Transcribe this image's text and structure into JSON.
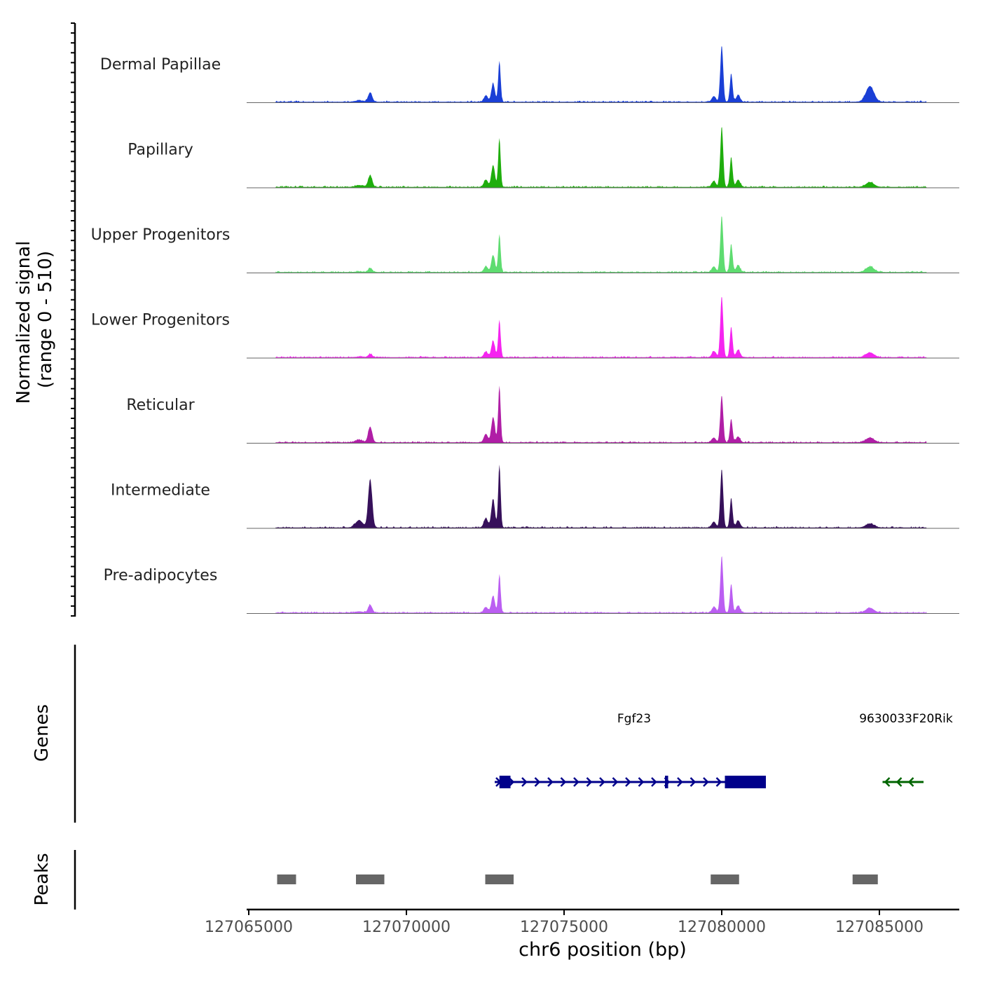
{
  "chart_data": {
    "type": "area",
    "title": "",
    "ylabel_line1": "Normalized signal",
    "ylabel_line2": "(range 0 - 510)",
    "y_range": [
      0,
      510
    ],
    "xlabel": "chr6 position (bp)",
    "xlim": [
      127064900,
      127087500
    ],
    "x_ticks": [
      127065000,
      127070000,
      127075000,
      127080000,
      127085000
    ],
    "x_tick_labels": [
      "127065000",
      "127070000",
      "127075000",
      "127080000",
      "127085000"
    ],
    "tracks": [
      {
        "name": "Dermal Papillae",
        "color": "#1a3fd6",
        "heights": {
          "p1": 0.12,
          "p2": 0.52,
          "p3": 0.72,
          "p4": 0.2
        }
      },
      {
        "name": "Papillary",
        "color": "#1fae0d",
        "heights": {
          "p1": 0.15,
          "p2": 0.62,
          "p3": 0.77,
          "p4": 0.06
        }
      },
      {
        "name": "Upper Progenitors",
        "color": "#5edc70",
        "heights": {
          "p1": 0.05,
          "p2": 0.48,
          "p3": 0.72,
          "p4": 0.07
        }
      },
      {
        "name": "Lower Progenitors",
        "color": "#f524f0",
        "heights": {
          "p1": 0.04,
          "p2": 0.47,
          "p3": 0.78,
          "p4": 0.06
        }
      },
      {
        "name": "Reticular",
        "color": "#b01ea6",
        "heights": {
          "p1": 0.2,
          "p2": 0.72,
          "p3": 0.6,
          "p4": 0.06
        }
      },
      {
        "name": "Intermediate",
        "color": "#36105a",
        "heights": {
          "p1": 0.62,
          "p2": 0.8,
          "p3": 0.75,
          "p4": 0.05
        }
      },
      {
        "name": "Pre-adipocytes",
        "color": "#bb5ef2",
        "heights": {
          "p1": 0.1,
          "p2": 0.48,
          "p3": 0.72,
          "p4": 0.06
        }
      }
    ],
    "peak_centers": {
      "p1": 127068850,
      "p2": 127072950,
      "p3": 127080000,
      "p4": 127084700
    },
    "genes_label": "Genes",
    "genes": [
      {
        "name": "Fgf23",
        "color": "#00008b",
        "start": 127072800,
        "end": 127081400,
        "strand": "+",
        "exons": [
          [
            127072950,
            127073300
          ],
          [
            127078200,
            127078300
          ],
          [
            127080100,
            127081400
          ]
        ]
      },
      {
        "name": "9630033F20Rik",
        "color": "#006400",
        "start": 127085100,
        "end": 127086400,
        "strand": "-",
        "exons": []
      }
    ],
    "peaks_label": "Peaks",
    "peaks_color": "#666666",
    "peaks": [
      [
        127065900,
        127066500
      ],
      [
        127068400,
        127069300
      ],
      [
        127072500,
        127073400
      ],
      [
        127079650,
        127080550
      ],
      [
        127084150,
        127084950
      ]
    ]
  }
}
